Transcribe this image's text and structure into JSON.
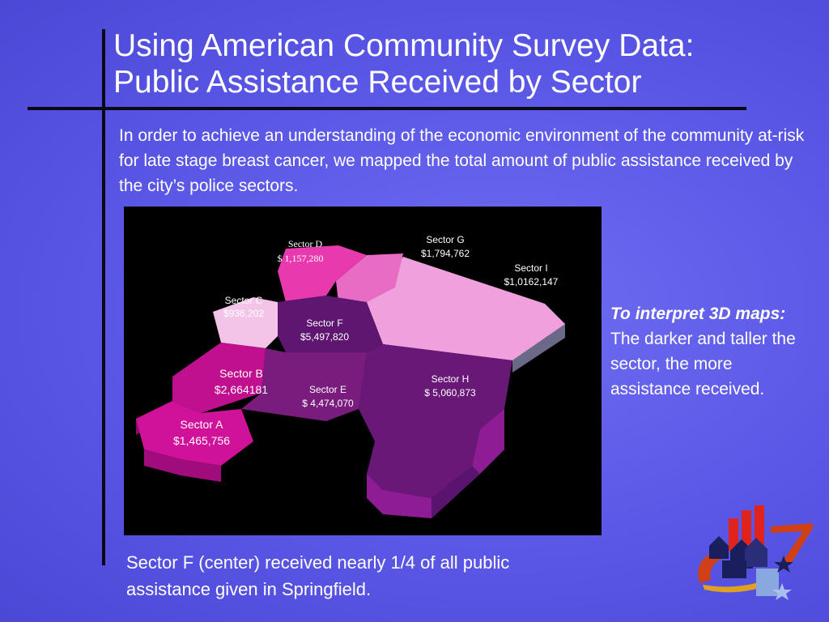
{
  "slide": {
    "title_line1": "Using American Community Survey Data:",
    "title_line2": "Public Assistance Received by Sector",
    "intro": "In order to achieve an understanding of the economic environment of the community at-risk for late stage breast cancer, we mapped the total amount of public assistance received by the city’s police sectors.",
    "note_heading": "To interpret 3D maps:",
    "note_body": "The darker and taller the sector, the more assistance received.",
    "caption": "Sector F (center) received nearly 1/4 of all public assistance given in Springfield."
  },
  "map": {
    "sectors": [
      {
        "name": "Sector A",
        "amount": "$1,465,756",
        "color": "#d0129a"
      },
      {
        "name": "Sector B",
        "amount": "$2,664181",
        "color": "#c0108f"
      },
      {
        "name": "Sector C",
        "amount": "$936,202",
        "color": "#f4c4e8"
      },
      {
        "name": "Sector D",
        "amount": "$ 1,157,280",
        "color": "#e83aae"
      },
      {
        "name": "Sector E",
        "amount": "$ 4,474,070",
        "color": "#7a1c7e"
      },
      {
        "name": "Sector F",
        "amount": "$5,497,820",
        "color": "#5e1670"
      },
      {
        "name": "Sector G",
        "amount": "$1,794,762",
        "color": "#e86cc4"
      },
      {
        "name": "Sector H",
        "amount": "$ 5,060,873",
        "color": "#6a1878"
      },
      {
        "name": "Sector I",
        "amount": "$1,0162,147",
        "color": "#f0a0dc"
      }
    ]
  },
  "colors": {
    "background": "#5a57e6",
    "rule": "#0a0a14",
    "map_background": "#000000"
  },
  "logo": {
    "icon": "houses-and-stars-logo"
  }
}
